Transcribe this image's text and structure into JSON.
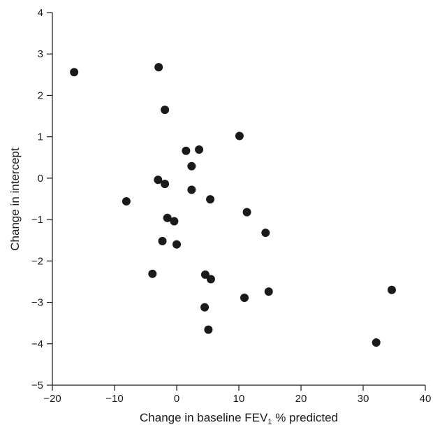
{
  "chart_data": {
    "type": "scatter",
    "title": "",
    "xlabel": "Change in baseline FEV",
    "xlabel_subscript": "1",
    "xlabel_suffix": " % predicted",
    "ylabel": "Change in intercept",
    "xlim": [
      -20,
      40
    ],
    "ylim": [
      -5,
      4
    ],
    "xticks": [
      -20,
      -10,
      0,
      10,
      20,
      30,
      40
    ],
    "yticks": [
      -5,
      -4,
      -3,
      -2,
      -1,
      0,
      1,
      2,
      3,
      4
    ],
    "grid": false,
    "marker_color": "#1a1a1a",
    "series": [
      {
        "points": [
          {
            "x": -16.5,
            "y": 2.56
          },
          {
            "x": -2.9,
            "y": 2.68
          },
          {
            "x": -1.9,
            "y": 1.65
          },
          {
            "x": 10.1,
            "y": 1.02
          },
          {
            "x": 1.5,
            "y": 0.66
          },
          {
            "x": 3.6,
            "y": 0.69
          },
          {
            "x": 2.4,
            "y": 0.29
          },
          {
            "x": -3.0,
            "y": -0.04
          },
          {
            "x": -1.9,
            "y": -0.14
          },
          {
            "x": 2.4,
            "y": -0.28
          },
          {
            "x": 5.4,
            "y": -0.51
          },
          {
            "x": -8.1,
            "y": -0.56
          },
          {
            "x": 11.3,
            "y": -0.82
          },
          {
            "x": -1.5,
            "y": -0.96
          },
          {
            "x": -0.4,
            "y": -1.04
          },
          {
            "x": 14.3,
            "y": -1.32
          },
          {
            "x": -2.3,
            "y": -1.52
          },
          {
            "x": 0.0,
            "y": -1.6
          },
          {
            "x": -3.9,
            "y": -2.31
          },
          {
            "x": 4.6,
            "y": -2.33
          },
          {
            "x": 5.5,
            "y": -2.44
          },
          {
            "x": 14.8,
            "y": -2.74
          },
          {
            "x": 34.6,
            "y": -2.7
          },
          {
            "x": 10.9,
            "y": -2.89
          },
          {
            "x": 4.5,
            "y": -3.12
          },
          {
            "x": 5.1,
            "y": -3.66
          },
          {
            "x": 32.1,
            "y": -3.97
          }
        ]
      }
    ]
  }
}
